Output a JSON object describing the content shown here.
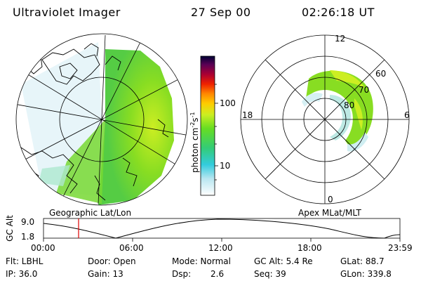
{
  "header": {
    "instrument": "Ultraviolet Imager",
    "date": "27 Sep 00",
    "time": "02:26:18 UT"
  },
  "colorbar": {
    "label": "photon cm",
    "label_exp1": "-2",
    "label_s": "s",
    "label_exp2": "-1",
    "tick_high": "100",
    "tick_low": "10"
  },
  "left_map": {
    "caption": "Geographic Lat/Lon"
  },
  "right_map": {
    "caption": "Apex MLat/MLT",
    "mlt_top": "12",
    "mlt_left": "18",
    "mlt_right": "6",
    "mlt_bottom": "0",
    "lat_60": "60",
    "lat_70": "70",
    "lat_80": "80"
  },
  "timeline": {
    "ylabel": "GC Alt",
    "y_high": "9.0",
    "y_low": "1.8",
    "ticks": [
      "00:00",
      "06:00",
      "12:00",
      "18:00",
      "23:59"
    ]
  },
  "info": {
    "flt": "Flt: LBHL",
    "door": "Door: Open",
    "mode": "Mode: Normal",
    "gc_alt": "GC Alt: 5.4 Re",
    "glat": "GLat: 88.7",
    "ip": "IP: 36.0",
    "gain": "Gain: 13",
    "dsp_label": "Dsp:",
    "dsp_value": "2.6",
    "seq": "Seq: 39",
    "glon": "GLon: 339.8"
  },
  "colors": {
    "aurora_green": "#66dd22",
    "aurora_yellow": "#ccee22",
    "cyan": "#33ccdd",
    "marker": "#dd0000"
  }
}
